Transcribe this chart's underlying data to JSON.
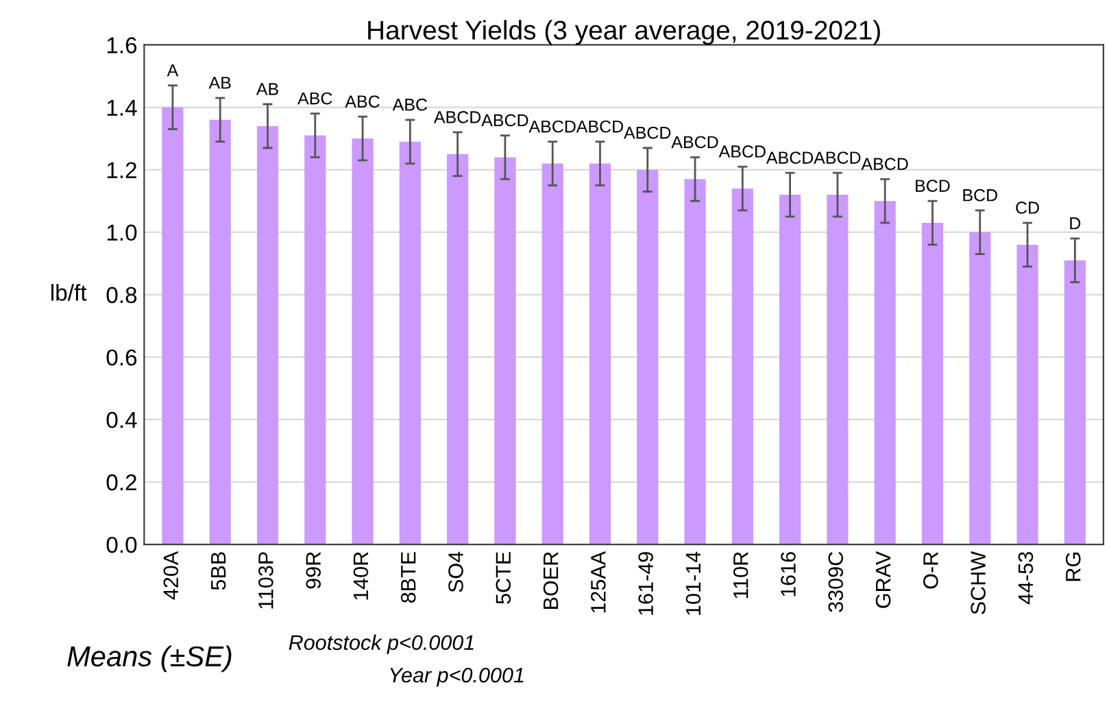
{
  "chart_data": {
    "type": "bar",
    "title": "Harvest Yields (3 year average, 2019-2021)",
    "ylabel": "lb/ft",
    "categories": [
      "420A",
      "5BB",
      "1103P",
      "99R",
      "140R",
      "8BTE",
      "SO4",
      "5CTE",
      "BOER",
      "125AA",
      "161-49",
      "101-14",
      "110R",
      "1616",
      "3309C",
      "GRAV",
      "O-R",
      "SCHW",
      "44-53",
      "RG"
    ],
    "values": [
      1.4,
      1.36,
      1.34,
      1.31,
      1.3,
      1.29,
      1.25,
      1.24,
      1.22,
      1.22,
      1.2,
      1.17,
      1.14,
      1.12,
      1.12,
      1.1,
      1.03,
      1.0,
      0.96,
      0.91
    ],
    "errors": [
      0.07,
      0.07,
      0.07,
      0.07,
      0.07,
      0.07,
      0.07,
      0.07,
      0.07,
      0.07,
      0.07,
      0.07,
      0.07,
      0.07,
      0.07,
      0.07,
      0.07,
      0.07,
      0.07,
      0.07
    ],
    "value_labels": [
      "A",
      "AB",
      "AB",
      "ABC",
      "ABC",
      "ABC",
      "ABCD",
      "ABCD",
      "ABCD",
      "ABCD",
      "ABCD",
      "ABCD",
      "ABCD",
      "ABCD",
      "ABCD",
      "ABCD",
      "BCD",
      "BCD",
      "CD",
      "D"
    ],
    "color": "#cc99ff",
    "ylim": [
      0,
      1.6
    ],
    "yticks": [
      {
        "value": 0,
        "label": "0.0"
      },
      {
        "value": 0.2,
        "label": "0.2"
      },
      {
        "value": 0.4,
        "label": "0.4"
      },
      {
        "value": 0.6,
        "label": "0.6"
      },
      {
        "value": 0.8,
        "label": "0.8"
      },
      {
        "value": 1.0,
        "label": "1.0"
      },
      {
        "value": 1.2,
        "label": "1.2"
      },
      {
        "value": 1.4,
        "label": "1.4"
      },
      {
        "value": 1.6,
        "label": "1.6"
      }
    ],
    "grid": "y",
    "annotations": [
      "Means (±SE)",
      "Rootstock p<0.0001",
      "Year p<0.0001"
    ]
  }
}
